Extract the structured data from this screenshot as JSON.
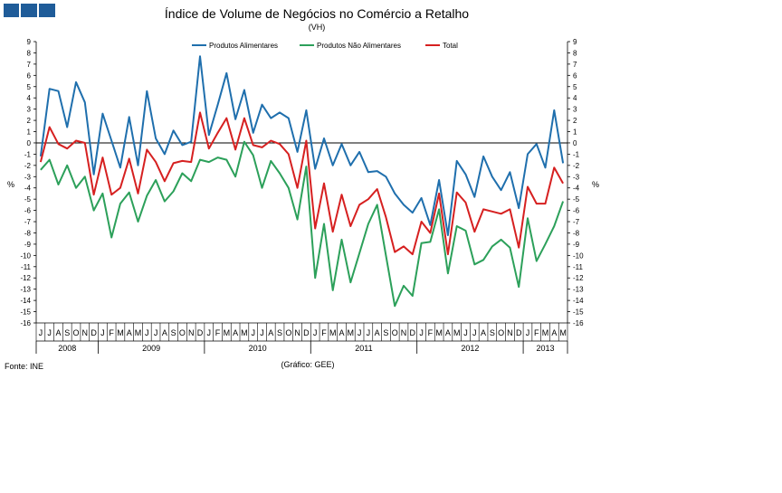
{
  "colors": {
    "brand": "#1f5c99",
    "food": "#1f6fad",
    "nonfood": "#2ca05a",
    "total": "#d62020",
    "axis": "#000000"
  },
  "chart_data": {
    "type": "line",
    "title": "Índice de Volume de Negócios no Comércio a Retalho",
    "subtitle": "(VH)",
    "ylabel_left": "%",
    "ylabel_right": "%",
    "source": "Fonte: INE",
    "credit": "(Gráfico: GEE)",
    "legend_position": "top-center",
    "ylim": [
      -16,
      9
    ],
    "yticks": [
      9,
      8,
      7,
      6,
      5,
      4,
      3,
      2,
      1,
      0,
      -1,
      -2,
      -3,
      -4,
      -5,
      -6,
      -7,
      -8,
      -9,
      -10,
      -11,
      -12,
      -13,
      -14,
      -15,
      -16
    ],
    "month_labels": [
      "J",
      "J",
      "A",
      "S",
      "O",
      "N",
      "D",
      "J",
      "F",
      "M",
      "A",
      "M",
      "J",
      "J",
      "A",
      "S",
      "O",
      "N",
      "D",
      "J",
      "F",
      "M",
      "A",
      "M",
      "J",
      "J",
      "A",
      "S",
      "O",
      "N",
      "D",
      "J",
      "F",
      "M",
      "A",
      "M",
      "J",
      "J",
      "A",
      "S",
      "O",
      "N",
      "D",
      "J",
      "F",
      "M",
      "A",
      "M",
      "J",
      "J",
      "A",
      "S",
      "O",
      "N",
      "D",
      "J",
      "F",
      "M",
      "A",
      "M"
    ],
    "years": [
      {
        "label": "2008",
        "start": 0,
        "count": 7
      },
      {
        "label": "2009",
        "start": 7,
        "count": 12
      },
      {
        "label": "2010",
        "start": 19,
        "count": 12
      },
      {
        "label": "2011",
        "start": 31,
        "count": 12
      },
      {
        "label": "2012",
        "start": 43,
        "count": 12
      },
      {
        "label": "2013",
        "start": 55,
        "count": 5
      }
    ],
    "series": [
      {
        "name": "Produtos Alimentares",
        "key": "food",
        "values": [
          -1.2,
          4.8,
          4.6,
          1.4,
          5.4,
          3.6,
          -2.8,
          2.6,
          0.2,
          -2.2,
          2.3,
          -2.0,
          4.6,
          0.4,
          -1.0,
          1.1,
          -0.2,
          0.1,
          7.7,
          0.7,
          3.4,
          6.2,
          2.1,
          4.7,
          0.9,
          3.4,
          2.2,
          2.7,
          2.2,
          -0.8,
          2.9,
          -2.3,
          0.4,
          -2.0,
          -0.1,
          -2.0,
          -0.8,
          -2.6,
          -2.5,
          -3.0,
          -4.5,
          -5.5,
          -6.2,
          -4.9,
          -7.3,
          -3.3,
          -8.2,
          -1.6,
          -2.8,
          -4.8,
          -1.2,
          -3.0,
          -4.2,
          -2.6,
          -5.8,
          -1.0,
          -0.1,
          -2.2,
          2.9,
          -1.8
        ]
      },
      {
        "name": "Produtos Não Alimentares",
        "key": "nonfood",
        "values": [
          -2.4,
          -1.5,
          -3.7,
          -2.0,
          -4.0,
          -3.0,
          -6.0,
          -4.5,
          -8.4,
          -5.4,
          -4.4,
          -7.0,
          -4.7,
          -3.3,
          -5.2,
          -4.3,
          -2.7,
          -3.4,
          -1.5,
          -1.7,
          -1.3,
          -1.5,
          -3.0,
          0.1,
          -1.1,
          -4.0,
          -1.6,
          -2.7,
          -4.0,
          -6.8,
          -2.1,
          -12.0,
          -7.2,
          -13.1,
          -8.6,
          -12.4,
          -9.8,
          -7.2,
          -5.5,
          -10.0,
          -14.5,
          -12.7,
          -13.6,
          -8.9,
          -8.8,
          -5.9,
          -11.6,
          -7.4,
          -7.8,
          -10.8,
          -10.4,
          -9.2,
          -8.6,
          -9.3,
          -12.8,
          -6.7,
          -10.5,
          -9.0,
          -7.4,
          -5.2
        ]
      },
      {
        "name": "Total",
        "key": "total",
        "values": [
          -1.7,
          1.4,
          -0.1,
          -0.5,
          0.2,
          0.0,
          -4.6,
          -1.3,
          -4.6,
          -4.0,
          -1.4,
          -4.5,
          -0.6,
          -1.7,
          -3.4,
          -1.8,
          -1.6,
          -1.7,
          2.7,
          -0.5,
          0.9,
          2.2,
          -0.6,
          2.2,
          -0.2,
          -0.4,
          0.2,
          -0.1,
          -1.0,
          -4.0,
          0.2,
          -7.6,
          -3.6,
          -7.9,
          -4.6,
          -7.4,
          -5.5,
          -5.0,
          -4.1,
          -6.6,
          -9.7,
          -9.2,
          -9.9,
          -7.0,
          -8.0,
          -4.5,
          -9.9,
          -4.4,
          -5.3,
          -7.9,
          -5.9,
          -6.1,
          -6.3,
          -5.9,
          -9.3,
          -3.9,
          -5.4,
          -5.4,
          -2.2,
          -3.6
        ]
      }
    ]
  }
}
